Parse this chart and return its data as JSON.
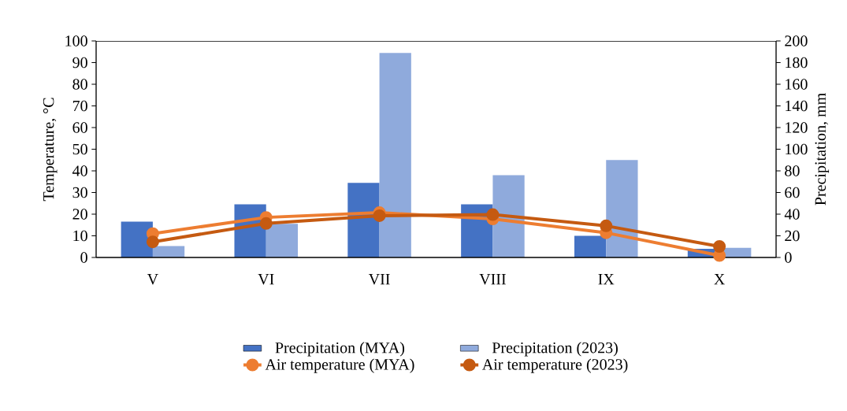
{
  "chart_data": {
    "type": "bar",
    "categories": [
      "V",
      "VI",
      "VII",
      "VIII",
      "IX",
      "X"
    ],
    "ylabel": "Temperature, °C",
    "y2label": "Precipitation, mm",
    "ylim": [
      0,
      100
    ],
    "yticks": [
      0,
      10,
      20,
      30,
      40,
      50,
      60,
      70,
      80,
      90,
      100
    ],
    "y2lim": [
      0,
      200
    ],
    "y2ticks": [
      0,
      20,
      40,
      60,
      80,
      100,
      120,
      140,
      160,
      180,
      200
    ],
    "legend": "bottom",
    "marker": "circle",
    "line_style": "solid",
    "series": [
      {
        "name": "Precipitation (MYA)",
        "axis": "y2",
        "color": "#4472c4",
        "values": [
          33,
          49,
          69,
          49,
          20,
          8
        ]
      },
      {
        "name": "Precipitation  (2023)",
        "axis": "y2",
        "color": "#8faadc",
        "values": [
          10.5,
          31,
          189,
          76,
          90,
          9
        ]
      },
      {
        "name": "Air temperature (MYA)",
        "type": "line",
        "color": "#ed7d31",
        "values": [
          11.0,
          18.5,
          20.7,
          17.8,
          11.4,
          0.9
        ]
      },
      {
        "name": "Air temperature (2023)",
        "type": "line",
        "color": "#c55a11",
        "values": [
          7.2,
          15.7,
          19.3,
          19.8,
          14.6,
          5.1
        ]
      }
    ]
  }
}
